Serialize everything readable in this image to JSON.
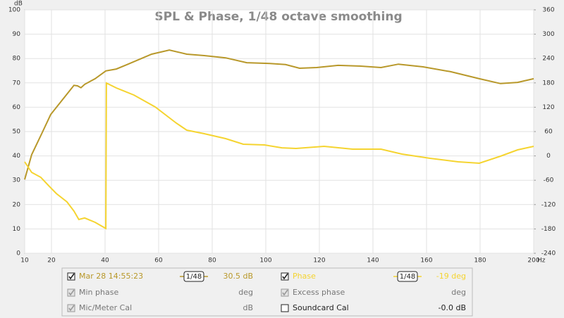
{
  "chart_data": {
    "type": "line",
    "title": "SPL & Phase, 1/48 octave smoothing",
    "y_label": "dB",
    "x_label": "Hz",
    "xlim": [
      10,
      200
    ],
    "xticks": [
      10,
      20,
      40,
      60,
      80,
      100,
      120,
      140,
      160,
      180,
      200
    ],
    "ylim": [
      0,
      100
    ],
    "yticks": [
      0,
      10,
      20,
      30,
      40,
      50,
      60,
      70,
      80,
      90,
      100
    ],
    "y2lim": [
      -240,
      360
    ],
    "y2ticks": [
      -240,
      -180,
      -120,
      -60,
      0,
      60,
      120,
      180,
      240,
      300,
      360
    ],
    "grid": true,
    "series": [
      {
        "name": "Mar 28 14:55:23",
        "color": "#b8982a",
        "x": [
          10,
          12.6,
          16.6,
          19.7,
          24.5,
          28.4,
          29.7,
          31,
          32.4,
          36.3,
          40.3,
          44.2,
          48.2,
          57.4,
          64,
          70.5,
          77,
          85,
          92.9,
          100.8,
          107.4,
          112.6,
          119,
          127,
          135,
          143,
          149.5,
          158.7,
          169,
          179.7,
          187.6,
          194,
          200
        ],
        "values": [
          30.3,
          40.5,
          49.7,
          57,
          63.6,
          69,
          68.8,
          68,
          69.4,
          71.7,
          74.9,
          75.7,
          77.5,
          81.8,
          83.5,
          81.8,
          81.2,
          80.3,
          78.3,
          78,
          77.5,
          76,
          76.3,
          77.2,
          76.9,
          76.3,
          77.7,
          76.6,
          74.6,
          71.7,
          69.7,
          70.2,
          71.7
        ]
      },
      {
        "name": "Phase",
        "color": "#f5d430",
        "axis": "y2",
        "x": [
          10,
          12.6,
          16,
          19.2,
          21.8,
          25.8,
          28.4,
          30.2,
          32.4,
          36.3,
          40.3,
          40.5,
          44.2,
          50.8,
          58.7,
          66.6,
          70.5,
          77,
          85,
          91.6,
          99.5,
          106,
          111.3,
          121.8,
          132.4,
          143,
          150.8,
          161.3,
          171.8,
          179.7,
          187.6,
          194,
          200
        ],
        "values": [
          -14.6,
          -40.6,
          -52.7,
          -75,
          -92.6,
          -113.4,
          -136,
          -156.8,
          -153,
          -163.7,
          -179,
          179.6,
          167.5,
          150,
          120.7,
          80.8,
          63.5,
          54.8,
          42.7,
          28.8,
          27,
          20,
          18.4,
          23.6,
          16.6,
          16.6,
          4.5,
          -5.9,
          -14.6,
          -18,
          -0.7,
          15,
          23.6
        ]
      }
    ]
  },
  "legend_panel": {
    "rows": [
      [
        {
          "checked": true,
          "enabled": true,
          "series": 0,
          "smoothing": "1/48",
          "reading": "30.5 dB"
        },
        {
          "checked": true,
          "enabled": true,
          "series": 1,
          "smoothing": "1/48",
          "reading": "-19 deg"
        }
      ],
      [
        {
          "checked": true,
          "enabled": false,
          "label": "Min phase",
          "reading": "deg"
        },
        {
          "checked": true,
          "enabled": false,
          "label": "Excess phase",
          "reading": "deg"
        }
      ],
      [
        {
          "checked": true,
          "enabled": false,
          "label": "Mic/Meter Cal",
          "reading": "dB"
        },
        {
          "checked": false,
          "enabled": true,
          "label": "Soundcard Cal",
          "reading": "-0.0 dB"
        }
      ]
    ]
  }
}
